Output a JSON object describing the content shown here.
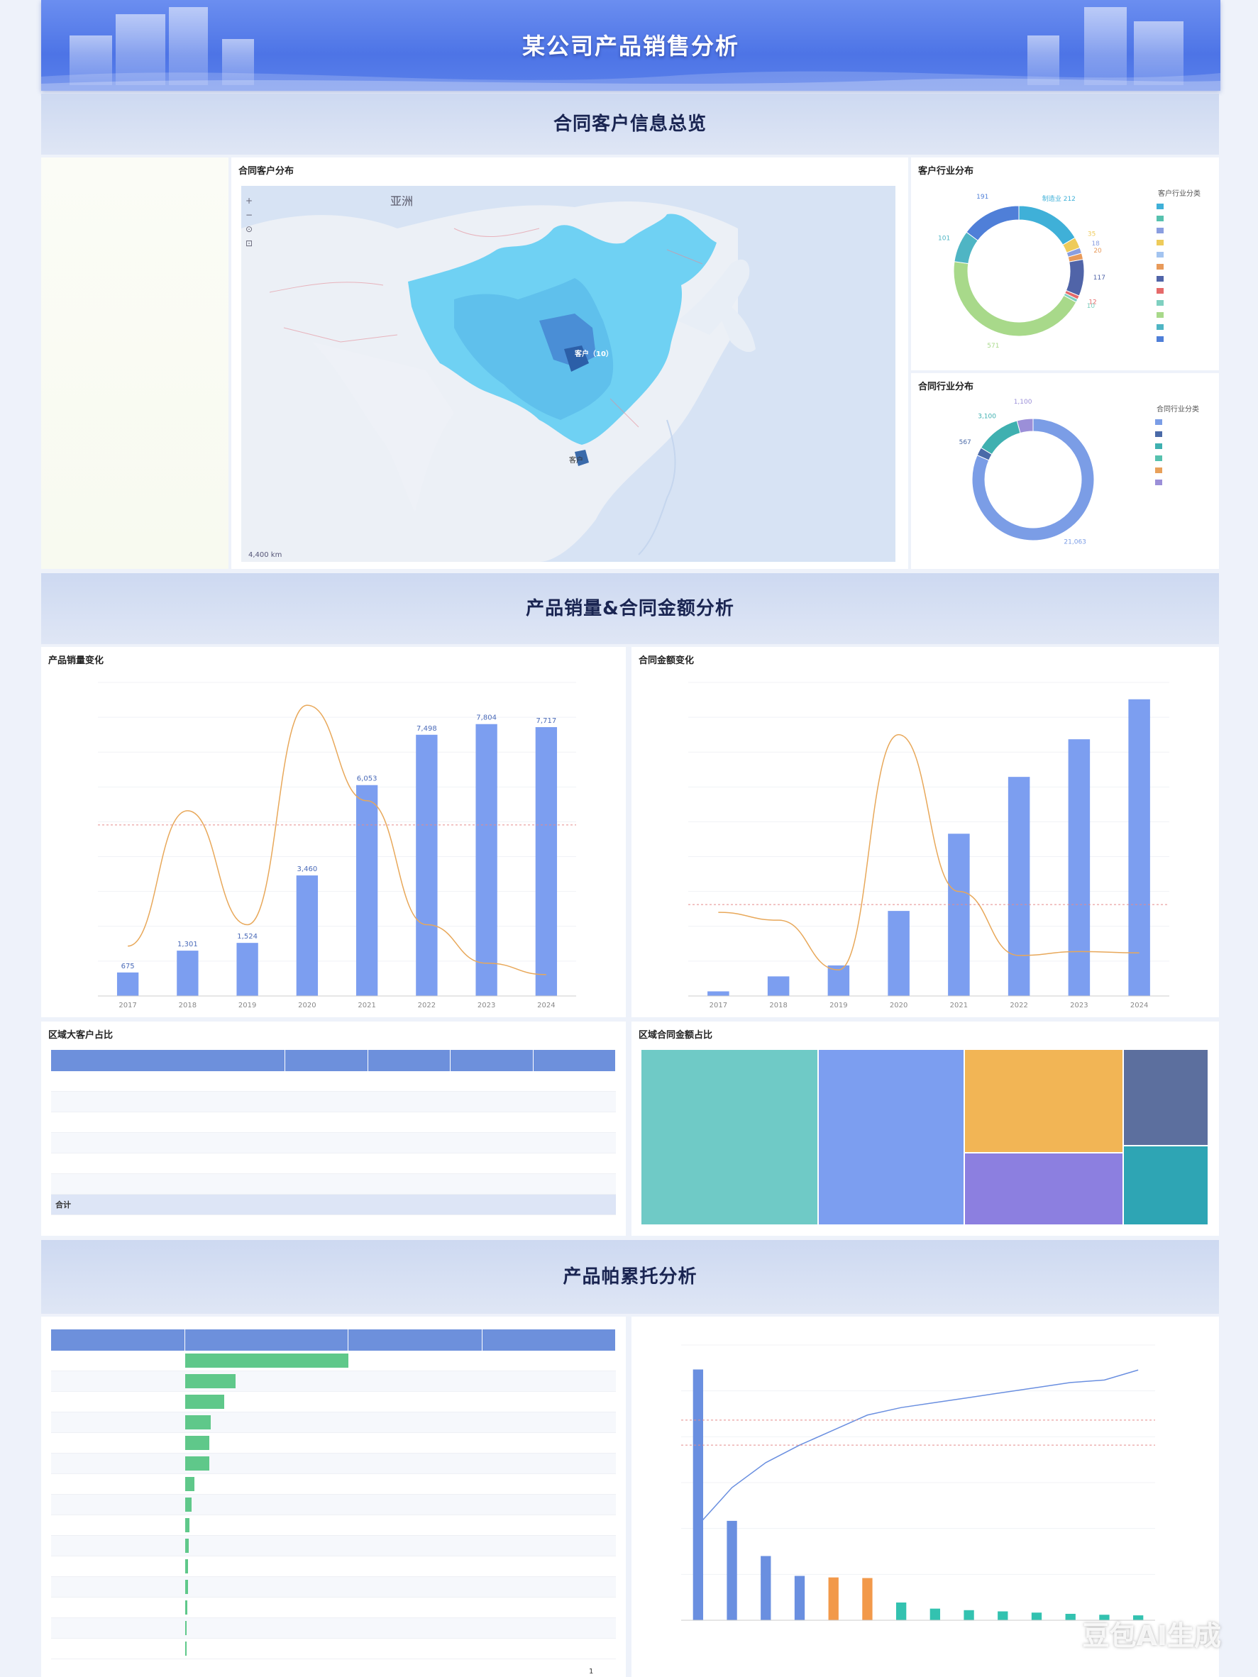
{
  "header": {
    "title": "某公司产品销售分析"
  },
  "sections": {
    "s1": "合同客户信息总览",
    "s2": "产品销量&合同金额分析",
    "s3": "产品帕累托分析"
  },
  "map": {
    "title": "合同客户分布",
    "region_label": "亚洲",
    "labels": [
      "客户（10）",
      "客户"
    ],
    "footer": "4,400 km",
    "controls": [
      "+",
      "−",
      "⊙",
      "⊡"
    ]
  },
  "donut1": {
    "title": "客户行业分布",
    "legend_title": "客户行业分类",
    "segments": [
      {
        "label": "制造业",
        "value": 212,
        "color": "#3fb0d8"
      },
      {
        "label": "",
        "value": 35,
        "color": "#eecb5a"
      },
      {
        "label": "",
        "value": 18,
        "color": "#8a9ee0"
      },
      {
        "label": "",
        "value": 20,
        "color": "#e89a5a"
      },
      {
        "label": "",
        "value": 117,
        "color": "#5064a8"
      },
      {
        "label": "",
        "value": 12,
        "color": "#e56a6a"
      },
      {
        "label": "",
        "value": 10,
        "color": "#7fd0c0"
      },
      {
        "label": "",
        "value": 571,
        "color": "#a8d98a"
      },
      {
        "label": "",
        "value": 101,
        "color": "#4fb5c4"
      },
      {
        "label": "",
        "value": 191,
        "color": "#4f7fd8"
      }
    ],
    "legend": [
      {
        "label": "",
        "color": "#3fb0d8"
      },
      {
        "label": "",
        "color": "#56c1ae"
      },
      {
        "label": "",
        "color": "#8a9ee0"
      },
      {
        "label": "",
        "color": "#eecb5a"
      },
      {
        "label": "",
        "color": "#a3c4f0"
      },
      {
        "label": "",
        "color": "#e89a5a"
      },
      {
        "label": "",
        "color": "#5064a8"
      },
      {
        "label": "",
        "color": "#e56a6a"
      },
      {
        "label": "",
        "color": "#7fd0c0"
      },
      {
        "label": "",
        "color": "#a8d98a"
      },
      {
        "label": "",
        "color": "#4fb5c4"
      },
      {
        "label": "",
        "color": "#4f7fd8"
      }
    ]
  },
  "donut2": {
    "title": "合同行业分布",
    "legend_title": "合同行业分类",
    "segments": [
      {
        "label": "",
        "value": 21063,
        "color": "#7b9de6"
      },
      {
        "label": "",
        "value": 567,
        "color": "#4a6aa8"
      },
      {
        "label": "",
        "value": 3100,
        "color": "#3fb0b0"
      },
      {
        "label": "",
        "value": 1100,
        "color": "#9b8fd8"
      }
    ],
    "legend": [
      {
        "label": "",
        "color": "#7b9de6"
      },
      {
        "label": "",
        "color": "#4a6aa8"
      },
      {
        "label": "",
        "color": "#3fb0b0"
      },
      {
        "label": "",
        "color": "#56c1ae"
      },
      {
        "label": "",
        "color": "#e8a05a"
      },
      {
        "label": "",
        "color": "#9b8fd8"
      }
    ]
  },
  "chart_data": [
    {
      "type": "bar",
      "title": "产品销量变化",
      "categories": [
        "2017",
        "2018",
        "2019",
        "2020",
        "2021",
        "2022",
        "2023",
        "2024"
      ],
      "series": [
        {
          "type": "bar",
          "values": [
            675,
            1301,
            1524,
            3460,
            6053,
            7498,
            7804,
            7717
          ],
          "labels": [
            "675",
            "1,301",
            "1,524",
            "3,460",
            "6,053",
            "7,498",
            "7,804",
            "7,717"
          ]
        },
        {
          "type": "line",
          "values": [
            15,
            110,
            30,
            184,
            117,
            30,
            3,
            -5
          ]
        }
      ],
      "ylim": [
        0,
        9000
      ],
      "y2lim": [
        -20,
        200
      ],
      "refline": 100
    },
    {
      "type": "bar",
      "title": "合同金额变化",
      "categories": [
        "2017",
        "2018",
        "2019",
        "2020",
        "2021",
        "2022",
        "2023",
        "2024"
      ],
      "series": [
        {
          "type": "bar",
          "values": [
            11800,
            50000,
            78000,
            217000,
            414000,
            559000,
            655000,
            757000
          ]
        },
        {
          "type": "line",
          "values": [
            34,
            28,
            -10,
            170,
            50,
            1,
            4,
            3
          ]
        }
      ],
      "ylim": [
        0,
        800000
      ],
      "y2lim": [
        -30,
        210
      ],
      "refline": 40
    },
    {
      "type": "treemap",
      "title": "区域合同金额占比",
      "cells": [
        {
          "label": "",
          "color": "#6fcac6"
        },
        {
          "label": "",
          "color": "#7c9ef0"
        },
        {
          "label": "",
          "color": "#f2b555"
        },
        {
          "label": "",
          "color": "#8c7fe0"
        },
        {
          "label": "",
          "color": "#5c6f9e"
        },
        {
          "label": "",
          "color": "#2ea5b4"
        }
      ]
    },
    {
      "type": "pareto",
      "bars": [
        8200,
        3250,
        2100,
        1450,
        1400,
        1380,
        580,
        380,
        330,
        290,
        250,
        210,
        180,
        160
      ],
      "bar_colors": [
        "#6a8fe0",
        "#6a8fe0",
        "#6a8fe0",
        "#6a8fe0",
        "#f2994a",
        "#f2994a",
        "#33c2b0",
        "#33c2b0",
        "#33c2b0",
        "#33c2b0",
        "#33c2b0",
        "#33c2b0",
        "#33c2b0",
        "#33c2b0"
      ],
      "cum": [
        38,
        53,
        63,
        70,
        76,
        82,
        85,
        87,
        89,
        91,
        93,
        95,
        96,
        100
      ],
      "ref1": 80,
      "ref2": 70
    }
  ],
  "table1": {
    "title": "区域大客户占比",
    "headers": [
      "",
      "",
      "",
      "",
      ""
    ],
    "rows": [
      [
        "",
        "",
        "",
        "",
        ""
      ],
      [
        "",
        "",
        "",
        "",
        ""
      ],
      [
        "",
        "",
        "",
        "",
        ""
      ],
      [
        "",
        "",
        "",
        "",
        ""
      ],
      [
        "",
        "",
        "",
        "",
        ""
      ],
      [
        "",
        "",
        "",
        "",
        ""
      ]
    ],
    "total": [
      "合计",
      "",
      "",
      "",
      ""
    ]
  },
  "table2": {
    "headers": [
      "",
      "",
      "",
      ""
    ],
    "rows": [
      {
        "cells": [
          "",
          "",
          "",
          ""
        ],
        "bar": 1.0
      },
      {
        "cells": [
          "",
          "",
          "",
          ""
        ],
        "bar": 0.31
      },
      {
        "cells": [
          "",
          "",
          "",
          ""
        ],
        "bar": 0.24
      },
      {
        "cells": [
          "",
          "",
          "",
          ""
        ],
        "bar": 0.16
      },
      {
        "cells": [
          "",
          "",
          "",
          ""
        ],
        "bar": 0.15
      },
      {
        "cells": [
          "",
          "",
          "",
          ""
        ],
        "bar": 0.15
      },
      {
        "cells": [
          "",
          "",
          "",
          ""
        ],
        "bar": 0.06
      },
      {
        "cells": [
          "",
          "",
          "",
          ""
        ],
        "bar": 0.04
      },
      {
        "cells": [
          "",
          "",
          "",
          ""
        ],
        "bar": 0.03
      },
      {
        "cells": [
          "",
          "",
          "",
          ""
        ],
        "bar": 0.025
      },
      {
        "cells": [
          "",
          "",
          "",
          ""
        ],
        "bar": 0.02
      },
      {
        "cells": [
          "",
          "",
          "",
          ""
        ],
        "bar": 0.018
      },
      {
        "cells": [
          "",
          "",
          "",
          ""
        ],
        "bar": 0.015
      },
      {
        "cells": [
          "",
          "",
          "",
          ""
        ],
        "bar": 0.012
      },
      {
        "cells": [
          "",
          "",
          "",
          ""
        ],
        "bar": 0.01
      }
    ],
    "pager": "1"
  },
  "watermark": "豆包AI生成"
}
